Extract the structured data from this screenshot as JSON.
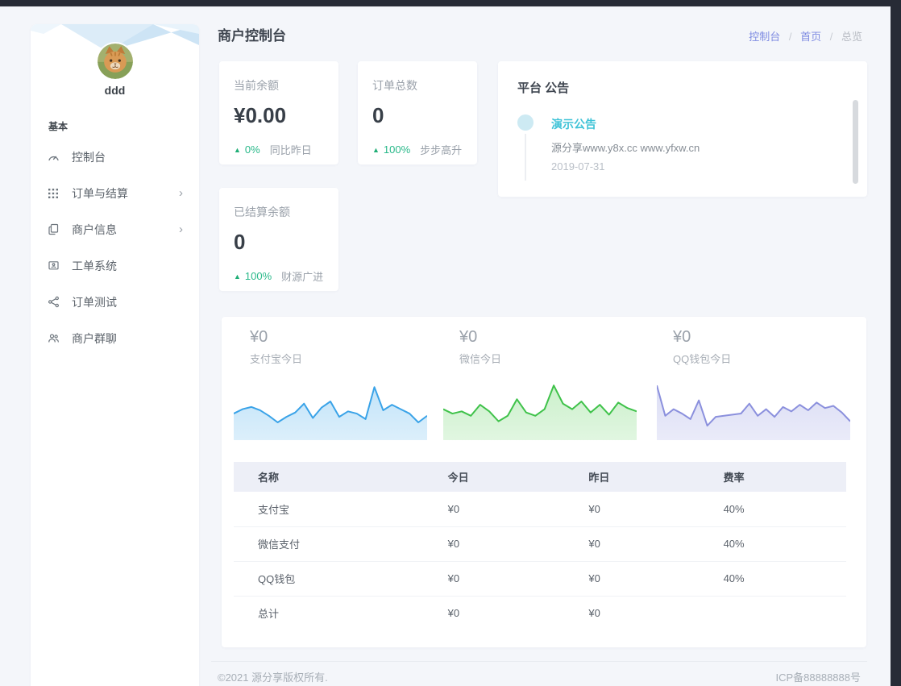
{
  "glyphs": {
    "arrow_up": "▲",
    "chevron_right": "›"
  },
  "colors": {
    "accent_green": "#2ab98a",
    "link_purple": "#7f8ce2",
    "announcement_teal": "#3fc3d7",
    "frame_dark": "#272b36",
    "page_background": "#f4f6fa"
  },
  "sidebar": {
    "username": "ddd",
    "section_label": "基本",
    "items": [
      {
        "label": "控制台",
        "icon": "gauge-icon",
        "has_children": false
      },
      {
        "label": "订单与结算",
        "icon": "grid-icon",
        "has_children": true
      },
      {
        "label": "商户信息",
        "icon": "documents-icon",
        "has_children": true
      },
      {
        "label": "工单系统",
        "icon": "ticket-icon",
        "has_children": false
      },
      {
        "label": "订单测试",
        "icon": "order-test-icon",
        "has_children": false
      },
      {
        "label": "商户群聊",
        "icon": "group-chat-icon",
        "has_children": false
      }
    ]
  },
  "header": {
    "title": "商户控制台",
    "separator": "/",
    "breadcrumb": [
      "控制台",
      "首页",
      "总览"
    ]
  },
  "stats": [
    {
      "title": "当前余额",
      "value": "¥0.00",
      "delta": "0%",
      "note": "同比昨日"
    },
    {
      "title": "订单总数",
      "value": "0",
      "delta": "100%",
      "note": "步步高升"
    },
    {
      "title": "已结算余额",
      "value": "0",
      "delta": "100%",
      "note": "财源广进"
    }
  ],
  "announcement": {
    "title": "平台 公告",
    "items": [
      {
        "title": "演示公告",
        "content": "源分享www.y8x.cc www.yfxw.cn",
        "date": "2019-07-31"
      }
    ]
  },
  "chart_data": {
    "type": "area",
    "description": "Three decorative sparkline area charts without axes, gridlines or tick labels; values are relative heights 0-100.",
    "charts": [
      {
        "name": "支付宝今日",
        "value_label": "¥0",
        "line_color": "#3aa3e8",
        "fill_color": "#bfe2f8",
        "values": [
          44,
          52,
          56,
          50,
          40,
          28,
          38,
          46,
          62,
          36,
          55,
          66,
          38,
          48,
          44,
          34,
          92,
          50,
          60,
          52,
          44,
          28,
          40
        ]
      },
      {
        "name": "微信今日",
        "value_label": "¥0",
        "line_color": "#3fc24a",
        "fill_color": "#c8efc8",
        "values": [
          52,
          44,
          48,
          40,
          60,
          48,
          30,
          40,
          70,
          46,
          40,
          52,
          95,
          62,
          52,
          66,
          46,
          60,
          42,
          64,
          54,
          48
        ]
      },
      {
        "name": "QQ钱包今日",
        "value_label": "¥0",
        "line_color": "#8b90dd",
        "fill_color": "#d9dbf4",
        "values": [
          95,
          40,
          52,
          44,
          34,
          68,
          22,
          38,
          40,
          42,
          44,
          62,
          40,
          52,
          38,
          56,
          48,
          60,
          50,
          64,
          54,
          58,
          46,
          30
        ]
      }
    ]
  },
  "table": {
    "headers": [
      "名称",
      "今日",
      "昨日",
      "费率"
    ],
    "rows": [
      [
        "支付宝",
        "¥0",
        "¥0",
        "40%"
      ],
      [
        "微信支付",
        "¥0",
        "¥0",
        "40%"
      ],
      [
        "QQ钱包",
        "¥0",
        "¥0",
        "40%"
      ],
      [
        "总计",
        "¥0",
        "¥0",
        ""
      ]
    ]
  },
  "footer": {
    "copyright": "©2021 源分享版权所有.",
    "icp": "ICP备88888888号"
  }
}
